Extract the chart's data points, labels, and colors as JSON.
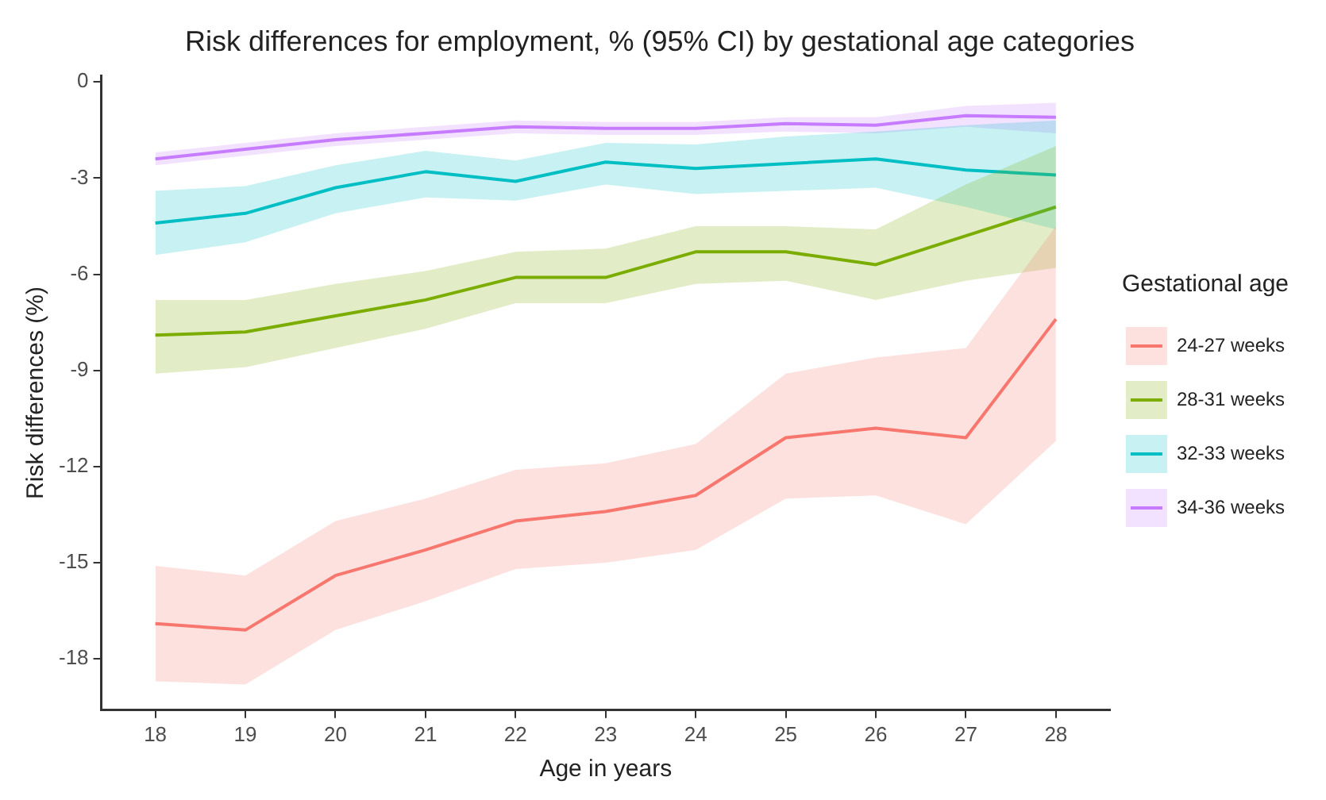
{
  "chart_data": {
    "type": "line",
    "title": "Risk differences for employment, % (95% CI) by gestational age categories",
    "xlabel": "Age in years",
    "ylabel": "Risk differences (%)",
    "legend_title": "Gestational age",
    "legend": "right",
    "grid": false,
    "marker": "none",
    "line_style": "solid",
    "x": [
      18,
      19,
      20,
      21,
      22,
      23,
      24,
      25,
      26,
      27,
      28
    ],
    "xlim": [
      17.4,
      28.6
    ],
    "xticks": [
      18,
      19,
      20,
      21,
      22,
      23,
      24,
      25,
      26,
      27,
      28
    ],
    "ylim": [
      -19.6,
      0.2
    ],
    "yticks": [
      0,
      -3,
      -6,
      -9,
      -12,
      -15,
      -18
    ],
    "series": [
      {
        "name": "24-27 weeks",
        "color": "#f8766d",
        "values": [
          -16.9,
          -17.1,
          -15.4,
          -14.6,
          -13.7,
          -13.4,
          -12.9,
          -11.1,
          -10.8,
          -11.1,
          -7.4
        ],
        "lower": [
          -18.7,
          -18.8,
          -17.1,
          -16.2,
          -15.2,
          -15.0,
          -14.6,
          -13.0,
          -12.9,
          -13.8,
          -11.2
        ],
        "upper": [
          -15.1,
          -15.4,
          -13.7,
          -13.0,
          -12.1,
          -11.9,
          -11.3,
          -9.1,
          -8.6,
          -8.3,
          -4.5
        ]
      },
      {
        "name": "28-31 weeks",
        "color": "#7cae00",
        "values": [
          -7.9,
          -7.8,
          -7.3,
          -6.8,
          -6.1,
          -6.1,
          -5.3,
          -5.3,
          -5.7,
          -4.8,
          -3.9
        ],
        "lower": [
          -9.1,
          -8.9,
          -8.3,
          -7.7,
          -6.9,
          -6.9,
          -6.3,
          -6.2,
          -6.8,
          -6.2,
          -5.8
        ],
        "upper": [
          -6.8,
          -6.8,
          -6.3,
          -5.9,
          -5.3,
          -5.2,
          -4.5,
          -4.5,
          -4.6,
          -3.2,
          -2.0
        ]
      },
      {
        "name": "32-33 weeks",
        "color": "#00bfc4",
        "values": [
          -4.4,
          -4.1,
          -3.3,
          -2.8,
          -3.1,
          -2.5,
          -2.7,
          -2.55,
          -2.4,
          -2.75,
          -2.9
        ],
        "lower": [
          -5.4,
          -5.0,
          -4.1,
          -3.6,
          -3.7,
          -3.2,
          -3.5,
          -3.4,
          -3.3,
          -3.9,
          -4.6
        ],
        "upper": [
          -3.4,
          -3.25,
          -2.6,
          -2.15,
          -2.45,
          -1.9,
          -1.95,
          -1.7,
          -1.55,
          -1.35,
          -1.2
        ]
      },
      {
        "name": "34-36 weeks",
        "color": "#c77cff",
        "values": [
          -2.4,
          -2.1,
          -1.8,
          -1.6,
          -1.4,
          -1.45,
          -1.45,
          -1.3,
          -1.35,
          -1.05,
          -1.1
        ],
        "lower": [
          -2.6,
          -2.3,
          -2.0,
          -1.8,
          -1.6,
          -1.65,
          -1.65,
          -1.55,
          -1.6,
          -1.4,
          -1.6
        ],
        "upper": [
          -2.2,
          -1.9,
          -1.6,
          -1.4,
          -1.2,
          -1.25,
          -1.25,
          -1.1,
          -1.1,
          -0.75,
          -0.65
        ]
      }
    ]
  }
}
